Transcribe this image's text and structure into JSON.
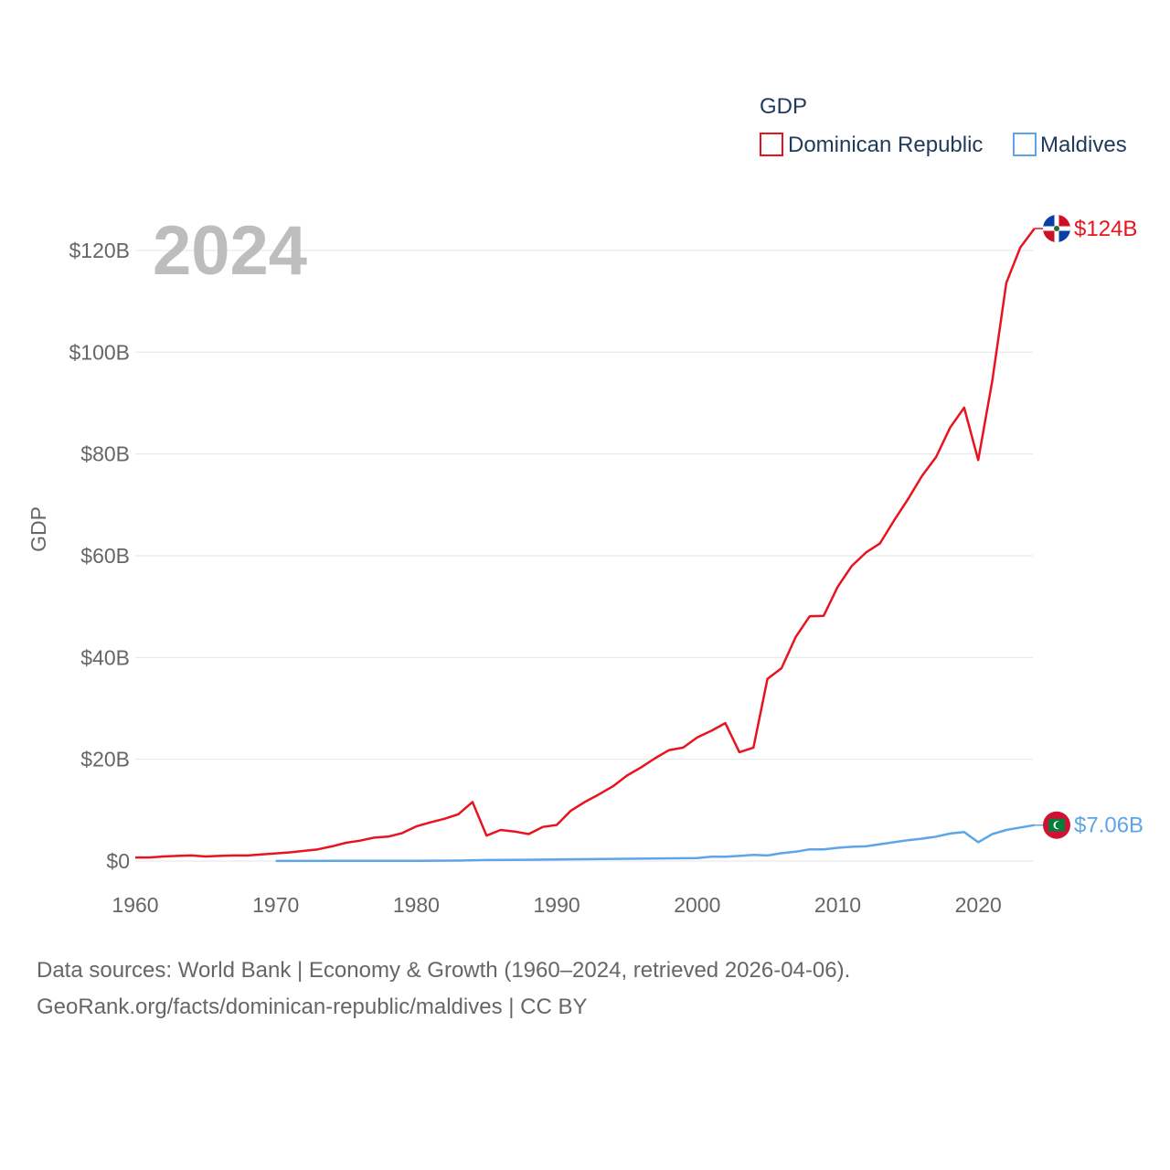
{
  "chart_data": {
    "type": "line",
    "legend_title": "GDP",
    "legend_position": "top-right",
    "ylabel": "GDP",
    "year_label": "2024",
    "ylim": [
      0,
      125
    ],
    "xlim": [
      1960,
      2024
    ],
    "y_ticks": [
      {
        "value": 0,
        "label": "$0"
      },
      {
        "value": 20,
        "label": "$20B"
      },
      {
        "value": 40,
        "label": "$40B"
      },
      {
        "value": 60,
        "label": "$60B"
      },
      {
        "value": 80,
        "label": "$80B"
      },
      {
        "value": 100,
        "label": "$100B"
      },
      {
        "value": 120,
        "label": "$120B"
      }
    ],
    "x_ticks": [
      {
        "value": 1960,
        "label": "1960"
      },
      {
        "value": 1970,
        "label": "1970"
      },
      {
        "value": 1980,
        "label": "1980"
      },
      {
        "value": 1990,
        "label": "1990"
      },
      {
        "value": 2000,
        "label": "2000"
      },
      {
        "value": 2010,
        "label": "2010"
      },
      {
        "value": 2020,
        "label": "2020"
      }
    ],
    "series": [
      {
        "name": "Dominican Republic",
        "color": "#e8131f",
        "icon": "dominican-republic-flag-icon",
        "end_label": "$124B",
        "points": [
          [
            1960,
            0.7
          ],
          [
            1961,
            0.7
          ],
          [
            1962,
            0.9
          ],
          [
            1963,
            1.0
          ],
          [
            1964,
            1.1
          ],
          [
            1965,
            0.9
          ],
          [
            1966,
            1.0
          ],
          [
            1967,
            1.1
          ],
          [
            1968,
            1.1
          ],
          [
            1969,
            1.3
          ],
          [
            1970,
            1.5
          ],
          [
            1971,
            1.7
          ],
          [
            1972,
            2.0
          ],
          [
            1973,
            2.3
          ],
          [
            1974,
            2.9
          ],
          [
            1975,
            3.6
          ],
          [
            1976,
            4.0
          ],
          [
            1977,
            4.6
          ],
          [
            1978,
            4.8
          ],
          [
            1979,
            5.5
          ],
          [
            1980,
            6.8
          ],
          [
            1981,
            7.6
          ],
          [
            1982,
            8.3
          ],
          [
            1983,
            9.2
          ],
          [
            1984,
            11.6
          ],
          [
            1985,
            5.0
          ],
          [
            1986,
            6.1
          ],
          [
            1987,
            5.8
          ],
          [
            1988,
            5.3
          ],
          [
            1989,
            6.7
          ],
          [
            1990,
            7.1
          ],
          [
            1991,
            9.9
          ],
          [
            1992,
            11.6
          ],
          [
            1993,
            13.1
          ],
          [
            1994,
            14.7
          ],
          [
            1995,
            16.8
          ],
          [
            1996,
            18.4
          ],
          [
            1997,
            20.2
          ],
          [
            1998,
            21.8
          ],
          [
            1999,
            22.3
          ],
          [
            2000,
            24.3
          ],
          [
            2001,
            25.6
          ],
          [
            2002,
            27.1
          ],
          [
            2003,
            21.4
          ],
          [
            2004,
            22.3
          ],
          [
            2005,
            35.8
          ],
          [
            2006,
            37.9
          ],
          [
            2007,
            44.0
          ],
          [
            2008,
            48.1
          ],
          [
            2009,
            48.2
          ],
          [
            2010,
            53.9
          ],
          [
            2011,
            58.0
          ],
          [
            2012,
            60.6
          ],
          [
            2013,
            62.4
          ],
          [
            2014,
            66.9
          ],
          [
            2015,
            71.1
          ],
          [
            2016,
            75.7
          ],
          [
            2017,
            79.4
          ],
          [
            2018,
            85.2
          ],
          [
            2019,
            89.1
          ],
          [
            2020,
            78.8
          ],
          [
            2021,
            94.4
          ],
          [
            2022,
            113.6
          ],
          [
            2023,
            120.6
          ],
          [
            2024,
            124.3
          ]
        ]
      },
      {
        "name": "Maldives",
        "color": "#5ea5e8",
        "icon": "maldives-flag-icon",
        "end_label": "$7.06B",
        "points": [
          [
            1970,
            0.02
          ],
          [
            1975,
            0.03
          ],
          [
            1980,
            0.06
          ],
          [
            1983,
            0.09
          ],
          [
            1985,
            0.2
          ],
          [
            1988,
            0.25
          ],
          [
            1990,
            0.3
          ],
          [
            1995,
            0.45
          ],
          [
            2000,
            0.6
          ],
          [
            2001,
            0.85
          ],
          [
            2002,
            0.87
          ],
          [
            2003,
            1.0
          ],
          [
            2004,
            1.2
          ],
          [
            2005,
            1.1
          ],
          [
            2006,
            1.55
          ],
          [
            2007,
            1.84
          ],
          [
            2008,
            2.3
          ],
          [
            2009,
            2.3
          ],
          [
            2010,
            2.6
          ],
          [
            2011,
            2.8
          ],
          [
            2012,
            2.9
          ],
          [
            2013,
            3.3
          ],
          [
            2014,
            3.7
          ],
          [
            2015,
            4.1
          ],
          [
            2016,
            4.4
          ],
          [
            2017,
            4.8
          ],
          [
            2018,
            5.4
          ],
          [
            2019,
            5.7
          ],
          [
            2020,
            3.7
          ],
          [
            2021,
            5.3
          ],
          [
            2022,
            6.1
          ],
          [
            2023,
            6.6
          ],
          [
            2024,
            7.06
          ]
        ]
      }
    ]
  },
  "footer": {
    "line1": "Data sources: World Bank | Economy & Growth (1960–2024, retrieved 2026-04-06).",
    "line2": "GeoRank.org/facts/dominican-republic/maldives | CC BY"
  }
}
